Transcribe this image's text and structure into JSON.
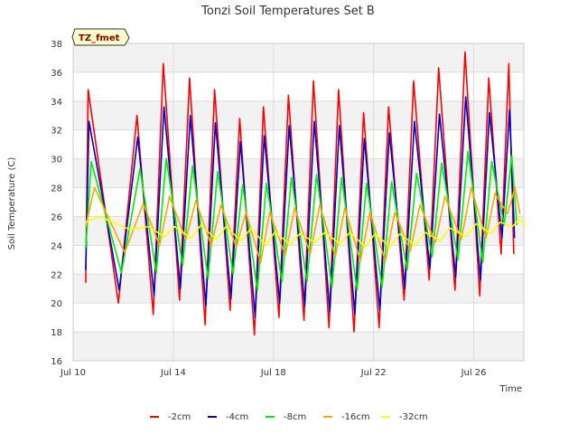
{
  "chart_data": {
    "type": "line",
    "title": "Tonzi Soil Temperatures Set B",
    "xlabel": "Time",
    "ylabel": "Soil Temperature (C)",
    "ylim": [
      16,
      38
    ],
    "yticks": [
      16,
      18,
      20,
      22,
      24,
      26,
      28,
      30,
      32,
      34,
      36,
      38
    ],
    "xlim": [
      10,
      28
    ],
    "xticks": [
      {
        "value": 10,
        "label": "Jul 10"
      },
      {
        "value": 14,
        "label": "Jul 14"
      },
      {
        "value": 18,
        "label": "Jul 18"
      },
      {
        "value": 22,
        "label": "Jul 22"
      },
      {
        "value": 26,
        "label": "Jul 26"
      }
    ],
    "grid": true,
    "badge": "TZ_fmet",
    "legend_position": "bottom",
    "series": [
      {
        "name": "-2cm",
        "color": "#ff0000",
        "min": [
          21.4,
          20.0,
          19.2,
          20.2,
          18.5,
          19.5,
          17.8,
          19.0,
          18.8,
          18.3,
          18.0,
          18.3,
          20.2,
          21.6,
          20.9,
          20.5,
          23.4
        ],
        "max": [
          34.8,
          33.0,
          36.6,
          35.6,
          34.8,
          32.8,
          33.6,
          34.4,
          35.4,
          34.8,
          33.2,
          33.6,
          35.4,
          36.3,
          37.4,
          35.6,
          36.6
        ]
      },
      {
        "name": "-4cm",
        "color": "#0000cc",
        "min": [
          22.3,
          20.9,
          20.5,
          21.0,
          19.8,
          20.3,
          19.0,
          20.0,
          19.8,
          19.4,
          19.2,
          19.5,
          21.0,
          22.4,
          21.8,
          21.6,
          24.5
        ],
        "max": [
          32.6,
          31.5,
          33.6,
          33.0,
          32.5,
          31.2,
          31.6,
          32.3,
          32.6,
          32.3,
          31.4,
          31.8,
          32.6,
          33.1,
          34.3,
          33.2,
          33.4
        ]
      },
      {
        "name": "-8cm",
        "color": "#00ee00",
        "min": [
          23.8,
          22.1,
          22.1,
          22.6,
          21.7,
          22.0,
          20.9,
          21.5,
          21.5,
          21.1,
          20.9,
          21.1,
          22.3,
          23.2,
          23.0,
          22.8,
          25.4
        ],
        "max": [
          29.8,
          29.3,
          30.0,
          29.5,
          29.1,
          28.2,
          28.3,
          28.7,
          28.9,
          28.7,
          28.3,
          28.4,
          29.0,
          29.7,
          30.5,
          29.8,
          30.2
        ]
      },
      {
        "name": "-16cm",
        "color": "#ffa500",
        "min": [
          25.3,
          23.5,
          24.0,
          24.4,
          24.0,
          23.9,
          22.8,
          23.3,
          23.4,
          23.2,
          22.9,
          22.9,
          23.6,
          24.2,
          24.4,
          24.5,
          26.2
        ],
        "max": [
          28.0,
          26.9,
          27.4,
          27.1,
          26.8,
          26.3,
          26.3,
          26.6,
          26.8,
          26.6,
          26.3,
          26.3,
          26.8,
          27.4,
          28.0,
          27.6,
          28.0
        ]
      },
      {
        "name": "-32cm",
        "color": "#ffff00",
        "min": [
          25.6,
          25.1,
          24.6,
          24.5,
          24.4,
          24.3,
          24.0,
          24.1,
          24.2,
          24.1,
          23.9,
          23.9,
          24.0,
          24.3,
          24.6,
          24.8,
          25.3
        ],
        "max": [
          26.0,
          25.3,
          25.3,
          25.4,
          25.3,
          25.2,
          24.9,
          24.8,
          24.9,
          24.9,
          24.8,
          24.8,
          24.9,
          25.2,
          25.5,
          25.6,
          25.9
        ]
      }
    ]
  }
}
